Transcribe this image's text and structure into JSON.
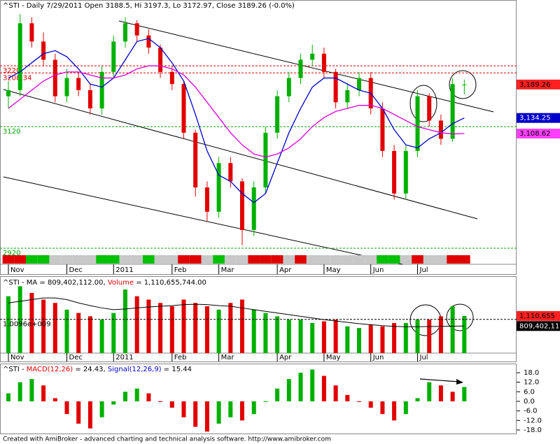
{
  "chart_data": [
    {
      "type": "candlestick",
      "title": "^STI - Daily 7/29/2011 Open 3188.5, Hi 3197.3, Lo 3172.97, Close 3189.26 (-0.0%)",
      "categories": [
        "Nov",
        null,
        null,
        null,
        null,
        "Dec",
        null,
        null,
        null,
        "2011",
        null,
        null,
        null,
        null,
        "Feb",
        null,
        null,
        null,
        "Mar",
        null,
        null,
        null,
        null,
        "Apr",
        null,
        null,
        null,
        "May",
        null,
        null,
        null,
        "Jun",
        null,
        null,
        null,
        "Jul",
        null,
        null,
        null,
        null
      ],
      "open": [
        3170,
        3180,
        3290,
        3260,
        3230,
        3170,
        3200,
        3180,
        3150,
        3210,
        3260,
        3290,
        3270,
        3250,
        3210,
        3190,
        3110,
        3020,
        2980,
        3060,
        3030,
        2950,
        3020,
        3110,
        3170,
        3200,
        3230,
        3240,
        3210,
        3160,
        3180,
        3200,
        3150,
        3080,
        3010,
        3080,
        3170,
        3130,
        3100,
        3188.5
      ],
      "high": [
        3195,
        3305,
        3300,
        3275,
        3240,
        3215,
        3210,
        3190,
        3220,
        3270,
        3300,
        3295,
        3280,
        3255,
        3220,
        3195,
        3115,
        3030,
        3070,
        3070,
        3035,
        3030,
        3120,
        3180,
        3210,
        3240,
        3255,
        3250,
        3215,
        3190,
        3210,
        3210,
        3160,
        3090,
        3090,
        3180,
        3175,
        3140,
        3200,
        3197.3
      ],
      "low": [
        3150,
        3170,
        3250,
        3220,
        3160,
        3160,
        3170,
        3140,
        3140,
        3200,
        3250,
        3260,
        3240,
        3200,
        3180,
        3100,
        3005,
        2965,
        2970,
        3020,
        2925,
        2940,
        3010,
        3100,
        3160,
        3190,
        3220,
        3200,
        3150,
        3150,
        3170,
        3140,
        3070,
        3000,
        3000,
        3070,
        3120,
        3090,
        3095,
        3172.97
      ],
      "close": [
        3180,
        3290,
        3260,
        3230,
        3170,
        3200,
        3180,
        3150,
        3210,
        3260,
        3290,
        3270,
        3250,
        3210,
        3190,
        3110,
        3020,
        2980,
        3060,
        3030,
        2950,
        3020,
        3110,
        3170,
        3200,
        3230,
        3240,
        3210,
        3160,
        3180,
        3200,
        3150,
        3080,
        3010,
        3080,
        3170,
        3130,
        3100,
        3190,
        3189.26
      ],
      "up_color": "#00b000",
      "down_color": "#e00000",
      "series": [
        {
          "color": "#0000cc",
          "values": [
            3200,
            3210,
            3225,
            3240,
            3245,
            3235,
            3215,
            3190,
            3185,
            3200,
            3230,
            3260,
            3265,
            3250,
            3225,
            3195,
            3140,
            3080,
            3040,
            3030,
            3010,
            2995,
            3010,
            3060,
            3110,
            3150,
            3185,
            3200,
            3200,
            3190,
            3180,
            3175,
            3150,
            3115,
            3090,
            3085,
            3100,
            3110,
            3125,
            3134.25
          ]
        },
        {
          "color": "#dd00dd",
          "values": [
            3150,
            3165,
            3180,
            3195,
            3205,
            3210,
            3210,
            3205,
            3200,
            3200,
            3205,
            3215,
            3220,
            3220,
            3215,
            3205,
            3185,
            3160,
            3135,
            3110,
            3090,
            3075,
            3070,
            3075,
            3085,
            3100,
            3120,
            3135,
            3145,
            3150,
            3155,
            3155,
            3150,
            3140,
            3130,
            3120,
            3115,
            3110,
            3108,
            3108.62
          ]
        }
      ],
      "ylim": [
        2920,
        3326
      ],
      "levels": [
        {
          "value": 3220,
          "color": "#e00000"
        },
        {
          "value": 3208.34,
          "color": "#e00000"
        },
        {
          "value": 3120,
          "color": "#00a000"
        },
        {
          "value": 2920,
          "color": "#00a000"
        }
      ],
      "last_labels": [
        {
          "value": 3189.26,
          "label": "3,189.26",
          "color": "#ff2020",
          "text_color": "#000000"
        },
        {
          "value": 3134.25,
          "label": "3,134.25",
          "color": "#0000cc",
          "text_color": "#ffffff"
        },
        {
          "value": 3108.62,
          "label": "3,108.62",
          "color": "#ff40ff",
          "text_color": "#000000"
        }
      ],
      "strip": [
        "#e00000",
        "#e00000",
        "#00c000",
        "#00c000",
        "#c8c8c8",
        "#c8c8c8",
        "#c8c8c8",
        "#c8c8c8",
        "#00c000",
        "#00c000",
        "#c8c8c8",
        "#c8c8c8",
        "#00c000",
        "#c8c8c8",
        "#c8c8c8",
        "#e00000",
        "#e00000",
        "#c8c8c8",
        "#00c000",
        "#c8c8c8",
        "#c8c8c8",
        "#e00000",
        "#e00000",
        "#e00000",
        "#c8c8c8",
        "#e00000",
        "#c8c8c8",
        "#c8c8c8",
        "#c8c8c8",
        "#c8c8c8",
        "#c8c8c8",
        "#c8c8c8",
        "#00c000",
        "#00c000",
        "#c8c8c8",
        "#e00000",
        "#c8c8c8",
        "#c8c8c8",
        "#e00000",
        "#e00000"
      ]
    },
    {
      "type": "bar",
      "title_parts": [
        "^STI - MA = 809,402,112.00, ",
        "Volume",
        " = 1,110,655,744.00"
      ],
      "values": [
        1700000000,
        2000000000,
        1800000000,
        1600000000,
        1500000000,
        1300000000,
        1200000000,
        1100000000,
        1000000000,
        1200000000,
        1900000000,
        1700000000,
        1600000000,
        1500000000,
        1400000000,
        1600000000,
        1500000000,
        1400000000,
        1300000000,
        1500000000,
        1600000000,
        1300000000,
        1200000000,
        1100000000,
        1000000000,
        1000000000,
        900000000,
        950000000,
        1000000000,
        800000000,
        750000000,
        850000000,
        800000000,
        900000000,
        900000000,
        1000000000,
        1000000000,
        1100000000,
        1400000000,
        1110655744
      ],
      "ma": [
        1500000000,
        1550000000,
        1600000000,
        1650000000,
        1650000000,
        1600000000,
        1500000000,
        1420000000,
        1350000000,
        1300000000,
        1320000000,
        1350000000,
        1380000000,
        1400000000,
        1420000000,
        1450000000,
        1460000000,
        1450000000,
        1420000000,
        1400000000,
        1350000000,
        1300000000,
        1250000000,
        1200000000,
        1150000000,
        1100000000,
        1050000000,
        1000000000,
        960000000,
        920000000,
        880000000,
        850000000,
        820000000,
        800000000,
        790000000,
        790000000,
        795000000,
        800000000,
        805000000,
        809402112
      ],
      "ylim": [
        0,
        2300000000
      ],
      "yticks": [
        {
          "value": 1009600000,
          "label": "1.0096e+009"
        }
      ],
      "last_labels": [
        {
          "value": 1110655744,
          "label": "1,110,655",
          "color": "#ff2020",
          "text_color": "#000000"
        },
        {
          "value": 809402112,
          "label": "809,402,11",
          "color": "#000000",
          "text_color": "#ffffff"
        }
      ]
    },
    {
      "type": "histogram",
      "title_parts": [
        "^STI - ",
        "MACD(12,26)",
        " = 24.43, ",
        "Signal(12,26,9)",
        " = 15.44"
      ],
      "values": [
        5,
        12,
        14,
        10,
        2,
        -8,
        -14,
        -17,
        -10,
        -2,
        6,
        8,
        5,
        0,
        -4,
        -10,
        -16,
        -19,
        -14,
        -10,
        -12,
        -8,
        0,
        8,
        14,
        18,
        20,
        16,
        10,
        4,
        0,
        -4,
        -8,
        -12,
        -8,
        2,
        12,
        10,
        6,
        9
      ],
      "ylim": [
        -20.2,
        23.7
      ],
      "yticks": [
        {
          "value": 18,
          "label": "18.0"
        },
        {
          "value": 12,
          "label": "12.0"
        },
        {
          "value": 6,
          "label": "6.0"
        },
        {
          "value": 0,
          "label": "0.0"
        },
        {
          "value": -6,
          "label": "-6.0"
        },
        {
          "value": -12,
          "label": "-12.0"
        },
        {
          "value": -18,
          "label": "-18.0"
        }
      ],
      "up_color": "#00b000",
      "down_color": "#e00000"
    }
  ],
  "footer": "Created with AmiBroker - advanced charting and technical analysis software. http://www.amibroker.com"
}
